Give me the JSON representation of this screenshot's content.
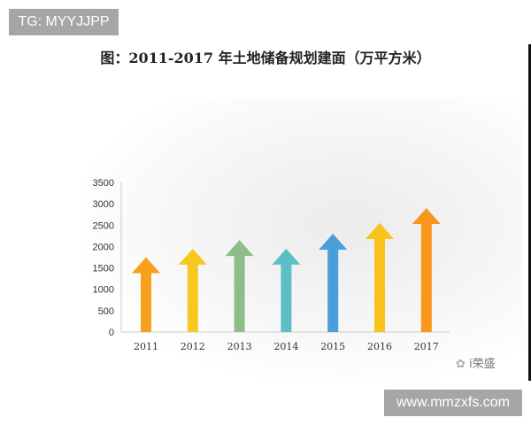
{
  "watermark_top": "TG: MYYJJPP",
  "watermark_bottom": "www.mmzxfs.com",
  "brand": {
    "icon": "wechat-icon",
    "text": "i荣盛"
  },
  "chart_data": {
    "type": "bar",
    "title": "图：2011-2017 年土地储备规划建面（万平方米）",
    "categories": [
      "2011",
      "2012",
      "2013",
      "2014",
      "2015",
      "2016",
      "2017"
    ],
    "values": [
      1750,
      1950,
      2150,
      1950,
      2300,
      2550,
      2900
    ],
    "colors": [
      "#f7a01d",
      "#f8c820",
      "#8fbd8a",
      "#5cbfc5",
      "#4a9edb",
      "#f9c31c",
      "#f7981c"
    ],
    "ylim": [
      0,
      3500
    ],
    "yticks": [
      "0",
      "500",
      "1000",
      "1500",
      "2000",
      "2500",
      "3000",
      "3500"
    ],
    "xlabel": "",
    "ylabel": "",
    "grid": false,
    "mark_style": "arrow"
  }
}
